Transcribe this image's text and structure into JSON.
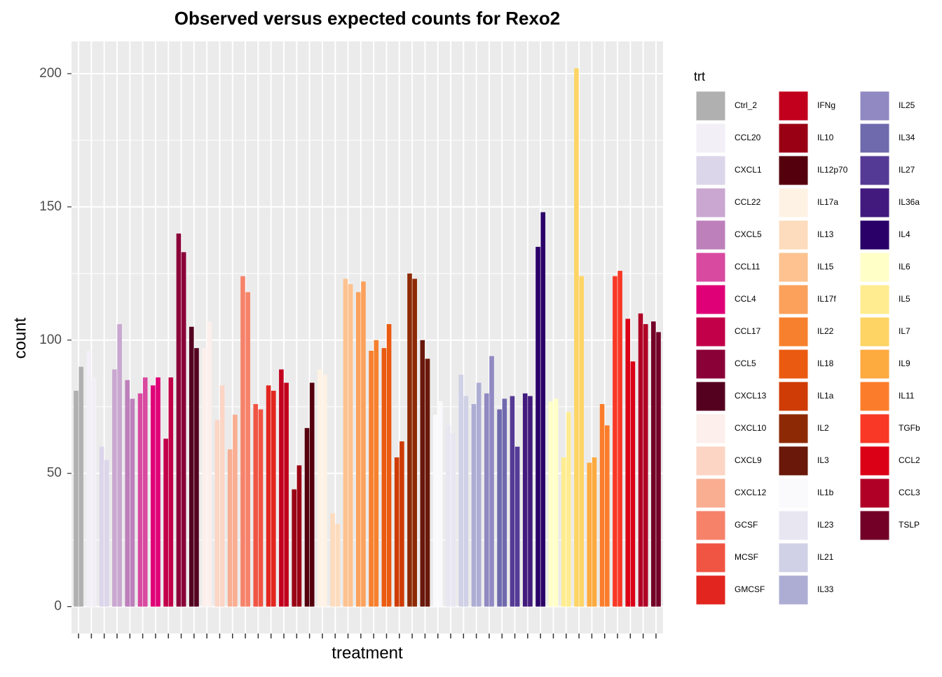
{
  "chart_data": {
    "type": "bar",
    "title": "Observed versus expected counts for Rexo2",
    "x_label": "treatment",
    "y_label": "count",
    "legend_title": "trt",
    "categories": [
      "Ctrl_2",
      "CCL20",
      "CXCL1",
      "CCL22",
      "CXCL5",
      "CCL11",
      "CCL4",
      "CCL17",
      "CCL5",
      "CXCL13",
      "CXCL10",
      "CXCL9",
      "CXCL12",
      "GCSF",
      "MCSF",
      "GMCSF",
      "IFNg",
      "IL10",
      "IL12p70",
      "IL17a",
      "IL13",
      "IL15",
      "IL17f",
      "IL22",
      "IL18",
      "IL1a",
      "IL2",
      "IL3",
      "IL1b",
      "IL23",
      "IL21",
      "IL33",
      "IL25",
      "IL34",
      "IL27",
      "IL36a",
      "IL4",
      "IL6",
      "IL5",
      "IL7",
      "IL9",
      "IL11",
      "TGFb",
      "CCL2",
      "CCL3",
      "TSLP"
    ],
    "colors": [
      "#b0b0b0",
      "#f2eff6",
      "#dcd6ea",
      "#c9a7d0",
      "#bd80bb",
      "#d84aa0",
      "#df0077",
      "#c20049",
      "#8a0138",
      "#54001f",
      "#fcefec",
      "#fcd5c5",
      "#f9ad91",
      "#f6826a",
      "#f05543",
      "#e2261f",
      "#c2001e",
      "#9a0014",
      "#54000d",
      "#fef2e5",
      "#fddcbe",
      "#fdc28f",
      "#fba15c",
      "#f7802e",
      "#ea5a10",
      "#cf3c05",
      "#8d2a05",
      "#69180a",
      "#fafafd",
      "#e8e6f1",
      "#d0d0e6",
      "#adadd4",
      "#9089c2",
      "#6f69ad",
      "#553a95",
      "#421a7e",
      "#2a0068",
      "#ffffc8",
      "#ffec90",
      "#fed464",
      "#fdaa3f",
      "#fb7d2c",
      "#f93826",
      "#dc0017",
      "#b00026",
      "#720027"
    ],
    "values": [
      [
        81,
        90
      ],
      [
        96,
        86
      ],
      [
        60,
        55
      ],
      [
        89,
        106
      ],
      [
        85,
        78
      ],
      [
        80,
        86
      ],
      [
        83,
        86
      ],
      [
        63,
        86
      ],
      [
        140,
        133
      ],
      [
        105,
        97
      ],
      [
        97,
        107
      ],
      [
        70,
        83
      ],
      [
        59,
        72
      ],
      [
        124,
        118
      ],
      [
        76,
        74
      ],
      [
        83,
        81
      ],
      [
        89,
        84
      ],
      [
        44,
        53
      ],
      [
        67,
        84
      ],
      [
        89,
        87
      ],
      [
        35,
        31
      ],
      [
        123,
        121
      ],
      [
        118,
        122
      ],
      [
        96,
        100
      ],
      [
        97,
        106
      ],
      [
        56,
        62
      ],
      [
        125,
        123
      ],
      [
        100,
        93
      ],
      [
        72,
        77
      ],
      [
        68,
        65
      ],
      [
        87,
        79
      ],
      [
        76,
        84
      ],
      [
        80,
        94
      ],
      [
        74,
        78
      ],
      [
        79,
        60
      ],
      [
        80,
        79
      ],
      [
        135,
        148
      ],
      [
        77,
        78
      ],
      [
        56,
        73
      ],
      [
        202,
        124
      ],
      [
        54,
        56
      ],
      [
        76,
        68
      ],
      [
        124,
        126
      ],
      [
        108,
        92
      ],
      [
        110,
        106
      ],
      [
        107,
        103
      ]
    ],
    "ylim": [
      -10.1,
      212.1
    ],
    "yticks": [
      0,
      50,
      100,
      150,
      200
    ],
    "grid": true
  }
}
